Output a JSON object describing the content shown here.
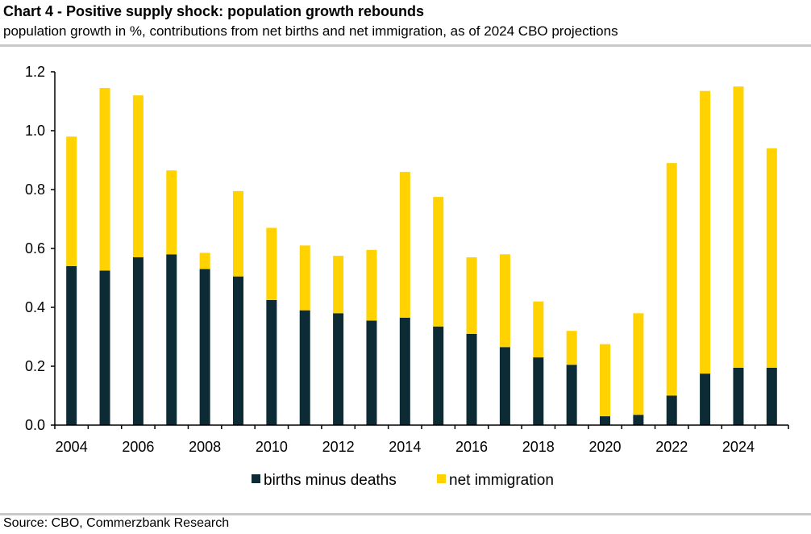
{
  "header": {
    "title": "Chart 4 - Positive supply shock: population growth rebounds",
    "subtitle": "population growth in %, contributions from net births and net immigration, as of 2024 CBO projections"
  },
  "footer": {
    "source": "Source: CBO, Commerzbank Research"
  },
  "colors": {
    "births": "#0d2b35",
    "immigration": "#ffd200",
    "axis": "#000000",
    "rule": "#c8c8c8"
  },
  "chart_data": {
    "type": "bar",
    "stacked": true,
    "title": "Chart 4 - Positive supply shock: population growth rebounds",
    "categories": [
      "2004",
      "2005",
      "2006",
      "2007",
      "2008",
      "2009",
      "2010",
      "2011",
      "2012",
      "2013",
      "2014",
      "2015",
      "2016",
      "2017",
      "2018",
      "2019",
      "2020",
      "2021",
      "2022",
      "2023",
      "2024",
      "2025"
    ],
    "x_tick_labels": [
      "2004",
      "2006",
      "2008",
      "2010",
      "2012",
      "2014",
      "2016",
      "2018",
      "2020",
      "2022",
      "2024"
    ],
    "y_tick_labels": [
      "0.0",
      "0.2",
      "0.4",
      "0.6",
      "0.8",
      "1.0",
      "1.2"
    ],
    "ylim": [
      0,
      1.2
    ],
    "grid": false,
    "legend_position": "bottom",
    "series": [
      {
        "name": "births minus deaths",
        "color": "#0d2b35",
        "values": [
          0.54,
          0.525,
          0.57,
          0.58,
          0.53,
          0.505,
          0.425,
          0.39,
          0.38,
          0.355,
          0.365,
          0.335,
          0.31,
          0.265,
          0.23,
          0.205,
          0.03,
          0.035,
          0.1,
          0.175,
          0.195,
          0.195
        ]
      },
      {
        "name": "net immigration",
        "color": "#ffd200",
        "values": [
          0.44,
          0.62,
          0.55,
          0.285,
          0.055,
          0.29,
          0.245,
          0.22,
          0.195,
          0.24,
          0.495,
          0.44,
          0.26,
          0.315,
          0.19,
          0.115,
          0.245,
          0.345,
          0.79,
          0.96,
          0.955,
          0.745
        ]
      }
    ]
  }
}
